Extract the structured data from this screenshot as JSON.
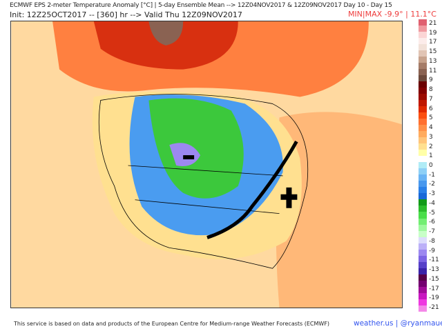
{
  "header": {
    "title": "ECMWF EPS 2-meter Temperature Anomaly [°C] | 5-day Ensemble Mean --> 12Z04NOV2017 & 12Z09NOV2017   Day 10 - Day 15",
    "init": "Init: 12Z25OCT2017 -- [360] hr --> Valid Thu 12Z09NOV2017",
    "minmax": "MIN|MAX -9.9° | 11.1°C"
  },
  "legend": {
    "labels": [
      "21",
      "19",
      "17",
      "15",
      "13",
      "11",
      "9",
      "8",
      "7",
      "6",
      "5",
      "4",
      "3",
      "2",
      "1",
      "0",
      "-1",
      "-2",
      "-3",
      "-4",
      "-5",
      "-6",
      "-7",
      "-8",
      "-9",
      "-11",
      "-13",
      "-15",
      "-17",
      "-19",
      "-21"
    ],
    "colors": [
      "#e06070",
      "#f09aa0",
      "#fbd5d5",
      "#fcecea",
      "#f2e1d8",
      "#e1c4b4",
      "#c7a28c",
      "#a57c68",
      "#8a6252",
      "#6d4a3c",
      "#6a0000",
      "#820000",
      "#9c0a00",
      "#c01800",
      "#e02a00",
      "#fb4f10",
      "#ff7030",
      "#ff9048",
      "#ffab5e",
      "#ffc57a",
      "#ffe090",
      "#ffffa8",
      "#ffffff",
      "#b0ecf6",
      "#8ed0f6",
      "#6ab4f4",
      "#4898ee",
      "#2a80e8",
      "#1868d8",
      "#119a18",
      "#2cbc2c",
      "#4ade4a",
      "#72ee72",
      "#9ef89e",
      "#c8ffc8",
      "#dcdcfc",
      "#bcb0f8",
      "#9c88f0",
      "#7c64e4",
      "#5640c8",
      "#3a22a8",
      "#560048",
      "#740070",
      "#a00c98",
      "#c818c0",
      "#ee38e0",
      "#f488e8"
    ]
  },
  "map": {
    "colors": {
      "ocean_warm": "#ffc88c",
      "warm": "#ff9a55",
      "hot": "#e0401a",
      "cold_blue": "#4a9cf0",
      "cold_green": "#3cc83c",
      "purple": "#9c88f0",
      "front": "#000000"
    }
  },
  "footer": {
    "attribution": "This service is based on data and products of the European Centre for Medium-range Weather Forecasts (ECMWF)",
    "brand": "weather.us | @ryanmaue"
  }
}
